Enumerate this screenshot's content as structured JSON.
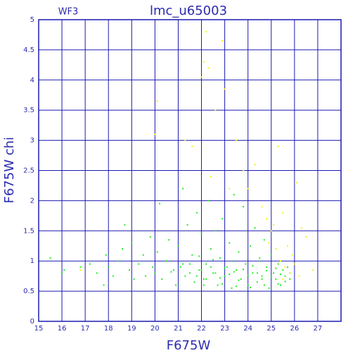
{
  "chart_data": {
    "type": "scatter",
    "title": "lmc_u65003",
    "subtitle": "WF3",
    "x_label": "F675W",
    "y_label": "F675W chi",
    "xlim": [
      15,
      28
    ],
    "ylim": [
      0,
      5
    ],
    "xticks": [
      15,
      16,
      17,
      18,
      19,
      20,
      21,
      22,
      23,
      24,
      25,
      26,
      27
    ],
    "yticks": [
      0,
      0.5,
      1,
      1.5,
      2,
      2.5,
      3,
      3.5,
      4,
      4.5,
      5
    ],
    "grid": true,
    "series": [
      {
        "color": "#22ee22",
        "x": [
          15.5,
          16,
          16.1,
          16.8,
          17.2,
          17.5,
          17.8,
          17.9,
          18,
          18.2,
          18.4,
          18.6,
          18.7,
          18.9,
          19,
          19.1,
          19.3,
          19.5,
          19.6,
          19.8,
          19.9,
          20,
          20.1,
          20.2,
          20.3,
          20.5,
          20.6,
          20.8,
          20.9,
          21,
          21.1,
          21.2,
          21.3,
          21.4,
          21.5,
          21.6,
          21.7,
          21.8,
          21.9,
          22,
          22.1,
          22.2,
          22.3,
          22.4,
          22.5,
          22.6,
          22.7,
          22.8,
          22.9,
          23,
          23.1,
          23.2,
          23.3,
          23.4,
          23.5,
          23.6,
          23.7,
          23.8,
          23.9,
          24,
          24.1,
          24.2,
          24.3,
          24.4,
          24.5,
          24.6,
          24.7,
          24.8,
          24.9,
          25,
          25.1,
          25.2,
          25.3,
          25.4,
          25.5,
          25.6,
          25.7,
          25.8,
          21.5,
          21.8,
          22,
          22.2,
          22.4,
          22.6,
          22.8,
          23,
          23.2,
          23.4,
          23.6,
          23.8,
          24,
          24.2,
          24.4,
          24.6,
          24.8,
          25,
          25.2,
          25.4,
          25.6,
          25.8,
          22.1,
          22.9,
          23.5,
          24.1,
          24.7,
          25.3,
          23.3,
          24.5,
          22.5,
          21.2,
          20.7,
          21.9
        ],
        "values": [
          1.05,
          0.8,
          0.85,
          0.9,
          0.95,
          0.8,
          0.6,
          1.1,
          0.9,
          0.75,
          1.0,
          1.2,
          1.6,
          0.85,
          1.3,
          0.7,
          0.95,
          1.1,
          0.75,
          1.4,
          0.9,
          0.8,
          1.15,
          1.95,
          0.7,
          1.0,
          1.35,
          0.85,
          0.6,
          1.25,
          0.9,
          2.2,
          0.75,
          1.6,
          0.95,
          1.1,
          0.65,
          1.8,
          0.85,
          1.45,
          0.7,
          0.95,
          2.0,
          1.2,
          0.8,
          1.5,
          0.6,
          1.05,
          1.7,
          0.75,
          0.9,
          1.3,
          0.55,
          2.1,
          0.85,
          1.15,
          0.7,
          1.9,
          0.95,
          0.6,
          1.25,
          0.8,
          1.55,
          0.65,
          1.0,
          0.75,
          1.35,
          0.9,
          0.55,
          1.1,
          0.8,
          0.7,
          0.95,
          0.6,
          0.85,
          0.75,
          0.9,
          0.7,
          0.8,
          0.75,
          0.85,
          0.7,
          0.9,
          0.8,
          0.72,
          0.88,
          0.78,
          0.82,
          0.68,
          0.86,
          0.76,
          0.92,
          0.8,
          0.7,
          0.84,
          0.74,
          0.88,
          0.78,
          0.66,
          0.8,
          0.6,
          0.62,
          0.58,
          0.56,
          0.6,
          0.62,
          1.0,
          1.05,
          1.02,
          0.95,
          0.82,
          1.08
        ]
      },
      {
        "color": "#f5f500",
        "x": [
          16.8,
          20.1,
          20,
          21.3,
          21.6,
          22,
          22.1,
          22.2,
          22.3,
          22.6,
          22.9,
          23,
          22.4,
          23.2,
          23.5,
          23.8,
          24,
          24.3,
          24.6,
          24.8,
          25,
          25.3,
          25.5,
          26.1,
          26.3,
          26.5,
          26.8,
          25.2,
          25.4,
          25.6,
          25.8,
          25.9,
          26,
          25.7,
          25.5,
          24.9,
          25.1,
          26.2
        ],
        "values": [
          0.85,
          3.65,
          3.1,
          3.0,
          2.9,
          4.05,
          4.3,
          4.8,
          4.2,
          3.5,
          4.65,
          3.85,
          2.4,
          2.2,
          3.0,
          2.5,
          2.2,
          2.6,
          1.9,
          1.7,
          1.5,
          2.9,
          1.8,
          2.3,
          1.55,
          1.4,
          0.85,
          1.2,
          1.0,
          0.9,
          0.8,
          1.1,
          0.95,
          1.25,
          0.7,
          1.3,
          1.6,
          0.75
        ]
      }
    ]
  }
}
